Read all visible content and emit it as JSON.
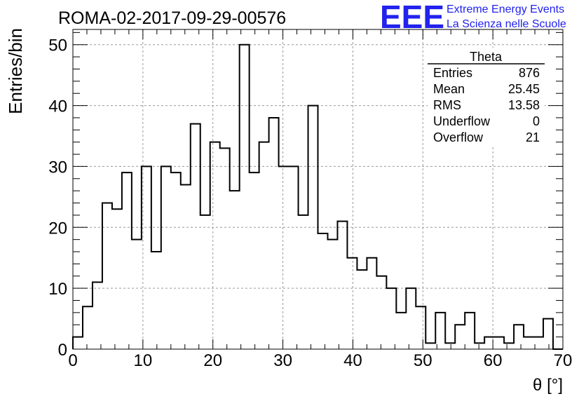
{
  "header": {
    "run_title": "ROMA-02-2017-09-29-00576",
    "logo_text": "EEE",
    "logo_line1": "Extreme Energy Events",
    "logo_line2": "La Scienza nelle Scuole",
    "logo_color": "#2222ee"
  },
  "stats": {
    "name": "Theta",
    "rows": [
      {
        "label": "Entries",
        "value": "876"
      },
      {
        "label": "Mean",
        "value": "25.45"
      },
      {
        "label": "RMS",
        "value": "13.58"
      },
      {
        "label": "Underflow",
        "value": "0"
      },
      {
        "label": "Overflow",
        "value": "21"
      }
    ]
  },
  "chart_data": {
    "type": "bar",
    "histogram": true,
    "xlabel": "θ [°]",
    "ylabel": "Entries/bin",
    "xlim": [
      0,
      70
    ],
    "ylim": [
      0,
      52.5
    ],
    "bin_width": 1.4,
    "x_ticks": [
      0,
      10,
      20,
      30,
      40,
      50,
      60,
      70
    ],
    "y_ticks": [
      0,
      10,
      20,
      30,
      40,
      50
    ],
    "grid": true,
    "values": [
      2,
      7,
      11,
      24,
      23,
      29,
      18,
      30,
      16,
      30,
      29,
      27,
      37,
      22,
      34,
      33,
      26,
      50,
      29,
      34,
      38,
      30,
      30,
      22,
      40,
      19,
      18,
      21,
      15,
      13,
      15,
      12,
      10,
      6,
      10,
      7,
      1,
      6,
      1,
      4,
      6,
      1,
      2,
      2,
      1,
      4,
      2,
      2,
      5,
      0
    ]
  }
}
